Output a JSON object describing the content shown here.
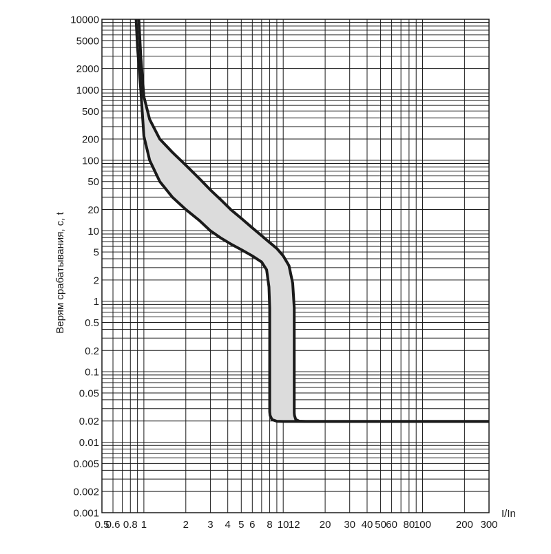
{
  "chart_data": {
    "type": "line",
    "title": "",
    "xlabel": "I/In",
    "ylabel": "Верям срабатывания, с, t",
    "xscale": "log",
    "yscale": "log",
    "xlim": [
      0.5,
      300
    ],
    "ylim": [
      0.001,
      10000
    ],
    "grid": true,
    "legend": "none",
    "x_tick_values": [
      0.5,
      0.6,
      0.8,
      1,
      2,
      3,
      4,
      5,
      6,
      8,
      10,
      12,
      20,
      30,
      40,
      50,
      60,
      80,
      100,
      200,
      300
    ],
    "x_tick_labels": [
      "0.5",
      "0.6",
      "0.8",
      "1",
      "2",
      "3",
      "4",
      "5",
      "6",
      "8",
      "10",
      "12",
      "20",
      "30",
      "40",
      "50",
      "60",
      "80",
      "100",
      "200",
      "300"
    ],
    "y_tick_values": [
      0.001,
      0.002,
      0.005,
      0.01,
      0.02,
      0.05,
      0.1,
      0.2,
      0.5,
      1,
      2,
      5,
      10,
      20,
      50,
      100,
      200,
      500,
      1000,
      2000,
      5000,
      10000
    ],
    "y_tick_labels": [
      "0.001",
      "0.002",
      "0.005",
      "0.01",
      "0.02",
      "0.05",
      "0.1",
      "0.2",
      "0.5",
      "1",
      "2",
      "5",
      "10",
      "20",
      "50",
      "100",
      "200",
      "500",
      "1000",
      "2000",
      "5000",
      "10000"
    ],
    "band_fill_color": "#dcdcdc",
    "line_color": "#1a1a1a",
    "grid_color": "#1a1a1a",
    "series": [
      {
        "x": [
          0.87,
          0.9,
          0.95,
          1.0,
          1.1,
          1.3,
          1.6,
          2.0,
          2.5,
          3.0,
          3.6,
          4.2,
          5.0,
          6.0,
          7.0,
          7.6,
          7.9,
          8.0,
          8.0,
          8.05,
          8.3,
          9.0,
          10.0,
          12.5,
          20,
          50,
          100,
          300
        ],
        "y": [
          15000,
          4000,
          1000,
          220,
          100,
          50,
          30,
          20,
          14,
          10,
          7.8,
          6.5,
          5.4,
          4.4,
          3.6,
          2.8,
          1.6,
          0.8,
          0.027,
          0.024,
          0.021,
          0.0198,
          0.0197,
          0.0197,
          0.0197,
          0.0197,
          0.0197,
          0.0197
        ]
      },
      {
        "x": [
          0.91,
          0.95,
          1.0,
          1.1,
          1.3,
          1.6,
          2.0,
          2.5,
          3.0,
          3.6,
          4.2,
          5.0,
          6.0,
          7.0,
          8.0,
          9.0,
          10.0,
          11.0,
          11.7,
          12.0,
          12.0,
          12.05,
          12.3,
          13.0,
          14.5,
          20,
          50,
          100,
          300
        ],
        "y": [
          15000,
          3000,
          800,
          380,
          200,
          130,
          85,
          55,
          38,
          27,
          20,
          15,
          11,
          8.5,
          6.8,
          5.6,
          4.4,
          3.2,
          1.8,
          0.8,
          0.026,
          0.024,
          0.021,
          0.0199,
          0.0197,
          0.0197,
          0.0197,
          0.0197,
          0.0197
        ]
      }
    ]
  }
}
